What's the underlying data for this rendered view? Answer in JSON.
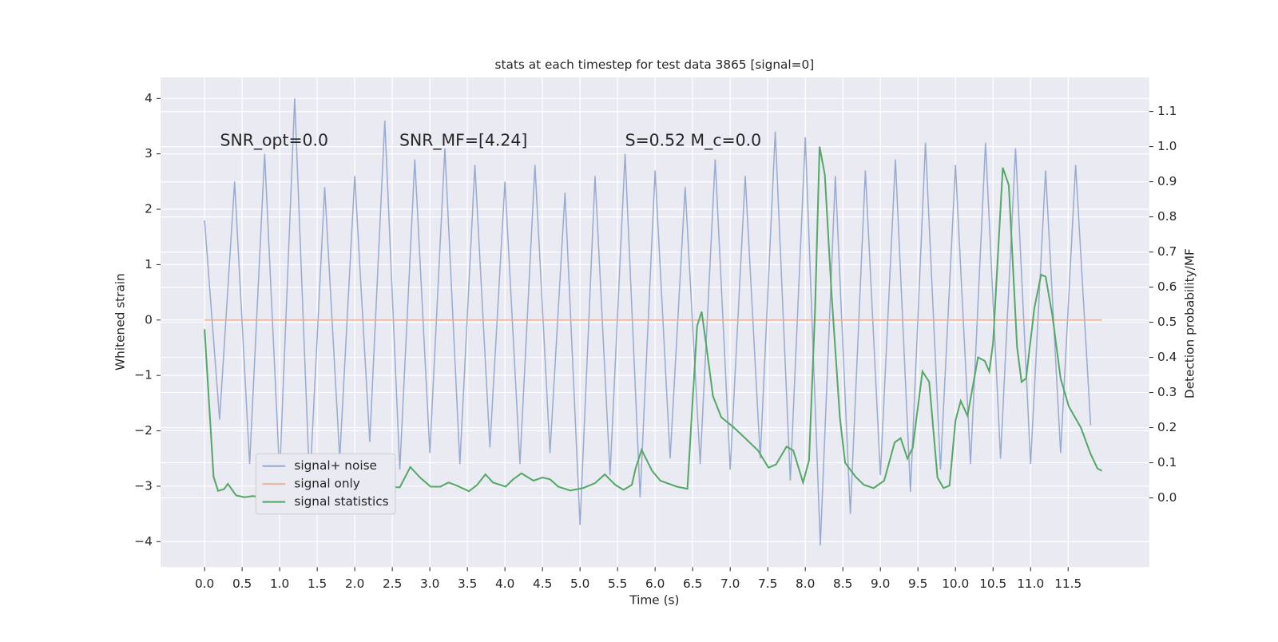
{
  "chart_data": {
    "type": "line",
    "title": "stats at each timestep for test data 3865 [signal=0]",
    "x_label": "Time (s)",
    "y_label": "Whitened strain",
    "y2_label": "Detection probability/MF",
    "annotations": [
      "SNR_opt=0.0",
      "SNR_MF=[4.24]",
      "S=0.52   M_c=0.0"
    ],
    "xlim": [
      -0.586,
      12.58
    ],
    "ylim": [
      -4.46,
      4.38
    ],
    "y2lim": [
      -0.197,
      1.197
    ],
    "grid": true,
    "legend": "lower left",
    "xticks": [
      {
        "value": 0,
        "label": "0.0"
      },
      {
        "value": 0.5,
        "label": "0.5"
      },
      {
        "value": 1,
        "label": "1.0"
      },
      {
        "value": 1.5,
        "label": "1.5"
      },
      {
        "value": 2,
        "label": "2.0"
      },
      {
        "value": 2.5,
        "label": "2.5"
      },
      {
        "value": 3,
        "label": "3.0"
      },
      {
        "value": 3.5,
        "label": "3.5"
      },
      {
        "value": 4,
        "label": "4.0"
      },
      {
        "value": 4.5,
        "label": "4.5"
      },
      {
        "value": 5,
        "label": "5.0"
      },
      {
        "value": 5.5,
        "label": "5.5"
      },
      {
        "value": 6,
        "label": "6.0"
      },
      {
        "value": 6.5,
        "label": "6.5"
      },
      {
        "value": 7,
        "label": "7.0"
      },
      {
        "value": 7.5,
        "label": "7.5"
      },
      {
        "value": 8,
        "label": "8.0"
      },
      {
        "value": 8.5,
        "label": "8.5"
      },
      {
        "value": 9,
        "label": "9.0"
      },
      {
        "value": 9.5,
        "label": "9.5"
      },
      {
        "value": 10,
        "label": "10.0"
      },
      {
        "value": 10.5,
        "label": "10.5"
      },
      {
        "value": 11,
        "label": "11.0"
      },
      {
        "value": 11.5,
        "label": "11.5"
      }
    ],
    "yticks": [
      {
        "value": -4,
        "label": "−4"
      },
      {
        "value": -3,
        "label": "−3"
      },
      {
        "value": -2,
        "label": "−2"
      },
      {
        "value": -1,
        "label": "−1"
      },
      0,
      1,
      2,
      3,
      4
    ],
    "y2ticks": [
      {
        "value": 0,
        "label": "0.0"
      },
      {
        "value": 0.1,
        "label": "0.1"
      },
      {
        "value": 0.2,
        "label": "0.2"
      },
      {
        "value": 0.3,
        "label": "0.3"
      },
      {
        "value": 0.4,
        "label": "0.4"
      },
      {
        "value": 0.5,
        "label": "0.5"
      },
      {
        "value": 0.6,
        "label": "0.6"
      },
      {
        "value": 0.7,
        "label": "0.7"
      },
      {
        "value": 0.8,
        "label": "0.8"
      },
      {
        "value": 0.9,
        "label": "0.9"
      },
      {
        "value": 1,
        "label": "1.0"
      },
      {
        "value": 1.1,
        "label": "1.1"
      }
    ],
    "series": [
      {
        "name": "signal+ noise",
        "color": "#9aabd0",
        "x": [
          0,
          0.2,
          0.4,
          0.6,
          0.8,
          1,
          1.2,
          1.4,
          1.6,
          1.8,
          2,
          2.2,
          2.4,
          2.6,
          2.8,
          3,
          3.2,
          3.4,
          3.6,
          3.8,
          4,
          4.2,
          4.4,
          4.6,
          4.8,
          5,
          5.2,
          5.4,
          5.6,
          5.8,
          6,
          6.2,
          6.4,
          6.6,
          6.8,
          7,
          7.2,
          7.4,
          7.6,
          7.8,
          8,
          8.2,
          8.4,
          8.6,
          8.8,
          9,
          9.2,
          9.4,
          9.6,
          9.8,
          10,
          10.2,
          10.4,
          10.6,
          10.8,
          11,
          11.2,
          11.4,
          11.6,
          11.8
        ],
        "values": [
          1.8,
          -1.8,
          2.5,
          -2.6,
          3.0,
          -2.8,
          4.0,
          -3.0,
          2.4,
          -2.5,
          2.6,
          -2.2,
          3.6,
          -2.7,
          2.9,
          -2.4,
          3.1,
          -2.6,
          2.8,
          -2.3,
          2.5,
          -2.6,
          2.8,
          -2.4,
          2.3,
          -3.7,
          2.6,
          -2.8,
          3.0,
          -3.2,
          2.7,
          -2.5,
          2.4,
          -2.6,
          2.9,
          -2.7,
          2.6,
          -2.5,
          3.4,
          -2.9,
          3.3,
          -4.07,
          2.6,
          -3.5,
          2.7,
          -2.8,
          2.9,
          -3.1,
          3.2,
          -2.7,
          2.8,
          -2.6,
          3.2,
          -2.5,
          3.1,
          -2.6,
          2.7,
          -2.4,
          2.8,
          -1.9
        ]
      },
      {
        "name": "signal only",
        "color": "#e8b49a",
        "x": [
          0,
          11.95
        ],
        "values": [
          0,
          0
        ]
      },
      {
        "name": "signal statistics",
        "color": "#55a868",
        "axis": "y2",
        "x": [
          0,
          0.12,
          0.18,
          0.26,
          0.31,
          0.42,
          0.53,
          0.64,
          0.8,
          0.91,
          1.02,
          1.13,
          1.29,
          1.4,
          1.51,
          1.62,
          1.73,
          1.84,
          1.94,
          2.11,
          2.27,
          2.43,
          2.6,
          2.74,
          2.87,
          3.01,
          3.14,
          3.25,
          3.36,
          3.52,
          3.63,
          3.74,
          3.84,
          4.01,
          4.11,
          4.22,
          4.38,
          4.5,
          4.6,
          4.71,
          4.87,
          5.04,
          5.2,
          5.33,
          5.47,
          5.58,
          5.69,
          5.74,
          5.82,
          5.96,
          6.07,
          6.29,
          6.43,
          6.5,
          6.56,
          6.62,
          6.69,
          6.77,
          6.88,
          7.05,
          7.15,
          7.37,
          7.51,
          7.61,
          7.75,
          7.84,
          7.97,
          8.05,
          8.13,
          8.19,
          8.26,
          8.35,
          8.46,
          8.53,
          8.67,
          8.78,
          8.91,
          9.05,
          9.19,
          9.27,
          9.36,
          9.43,
          9.56,
          9.65,
          9.76,
          9.84,
          9.92,
          10.0,
          10.07,
          10.16,
          10.3,
          10.39,
          10.45,
          10.5,
          10.63,
          10.71,
          10.82,
          10.88,
          10.94,
          11.05,
          11.14,
          11.2,
          11.29,
          11.4,
          11.51,
          11.67,
          11.8,
          11.89,
          11.95
        ],
        "values": [
          0.48,
          0.06,
          0.02,
          0.025,
          0.04,
          0.007,
          0.002,
          0.005,
          0.002,
          0.007,
          0.014,
          0.009,
          0.019,
          0.016,
          0.042,
          0.03,
          0.035,
          0.023,
          0.016,
          0.012,
          0.019,
          0.032,
          0.03,
          0.088,
          0.058,
          0.032,
          0.032,
          0.044,
          0.035,
          0.019,
          0.037,
          0.067,
          0.044,
          0.032,
          0.053,
          0.07,
          0.049,
          0.058,
          0.053,
          0.032,
          0.021,
          0.028,
          0.042,
          0.067,
          0.037,
          0.023,
          0.037,
          0.084,
          0.137,
          0.077,
          0.049,
          0.032,
          0.026,
          0.28,
          0.49,
          0.53,
          0.42,
          0.29,
          0.23,
          0.2,
          0.18,
          0.135,
          0.086,
          0.095,
          0.146,
          0.135,
          0.044,
          0.107,
          0.535,
          1.0,
          0.92,
          0.58,
          0.23,
          0.1,
          0.06,
          0.037,
          0.028,
          0.049,
          0.158,
          0.17,
          0.112,
          0.142,
          0.36,
          0.33,
          0.058,
          0.028,
          0.035,
          0.22,
          0.276,
          0.234,
          0.4,
          0.39,
          0.36,
          0.44,
          0.94,
          0.89,
          0.43,
          0.33,
          0.34,
          0.54,
          0.635,
          0.63,
          0.52,
          0.34,
          0.26,
          0.2,
          0.125,
          0.084,
          0.077
        ]
      }
    ]
  }
}
